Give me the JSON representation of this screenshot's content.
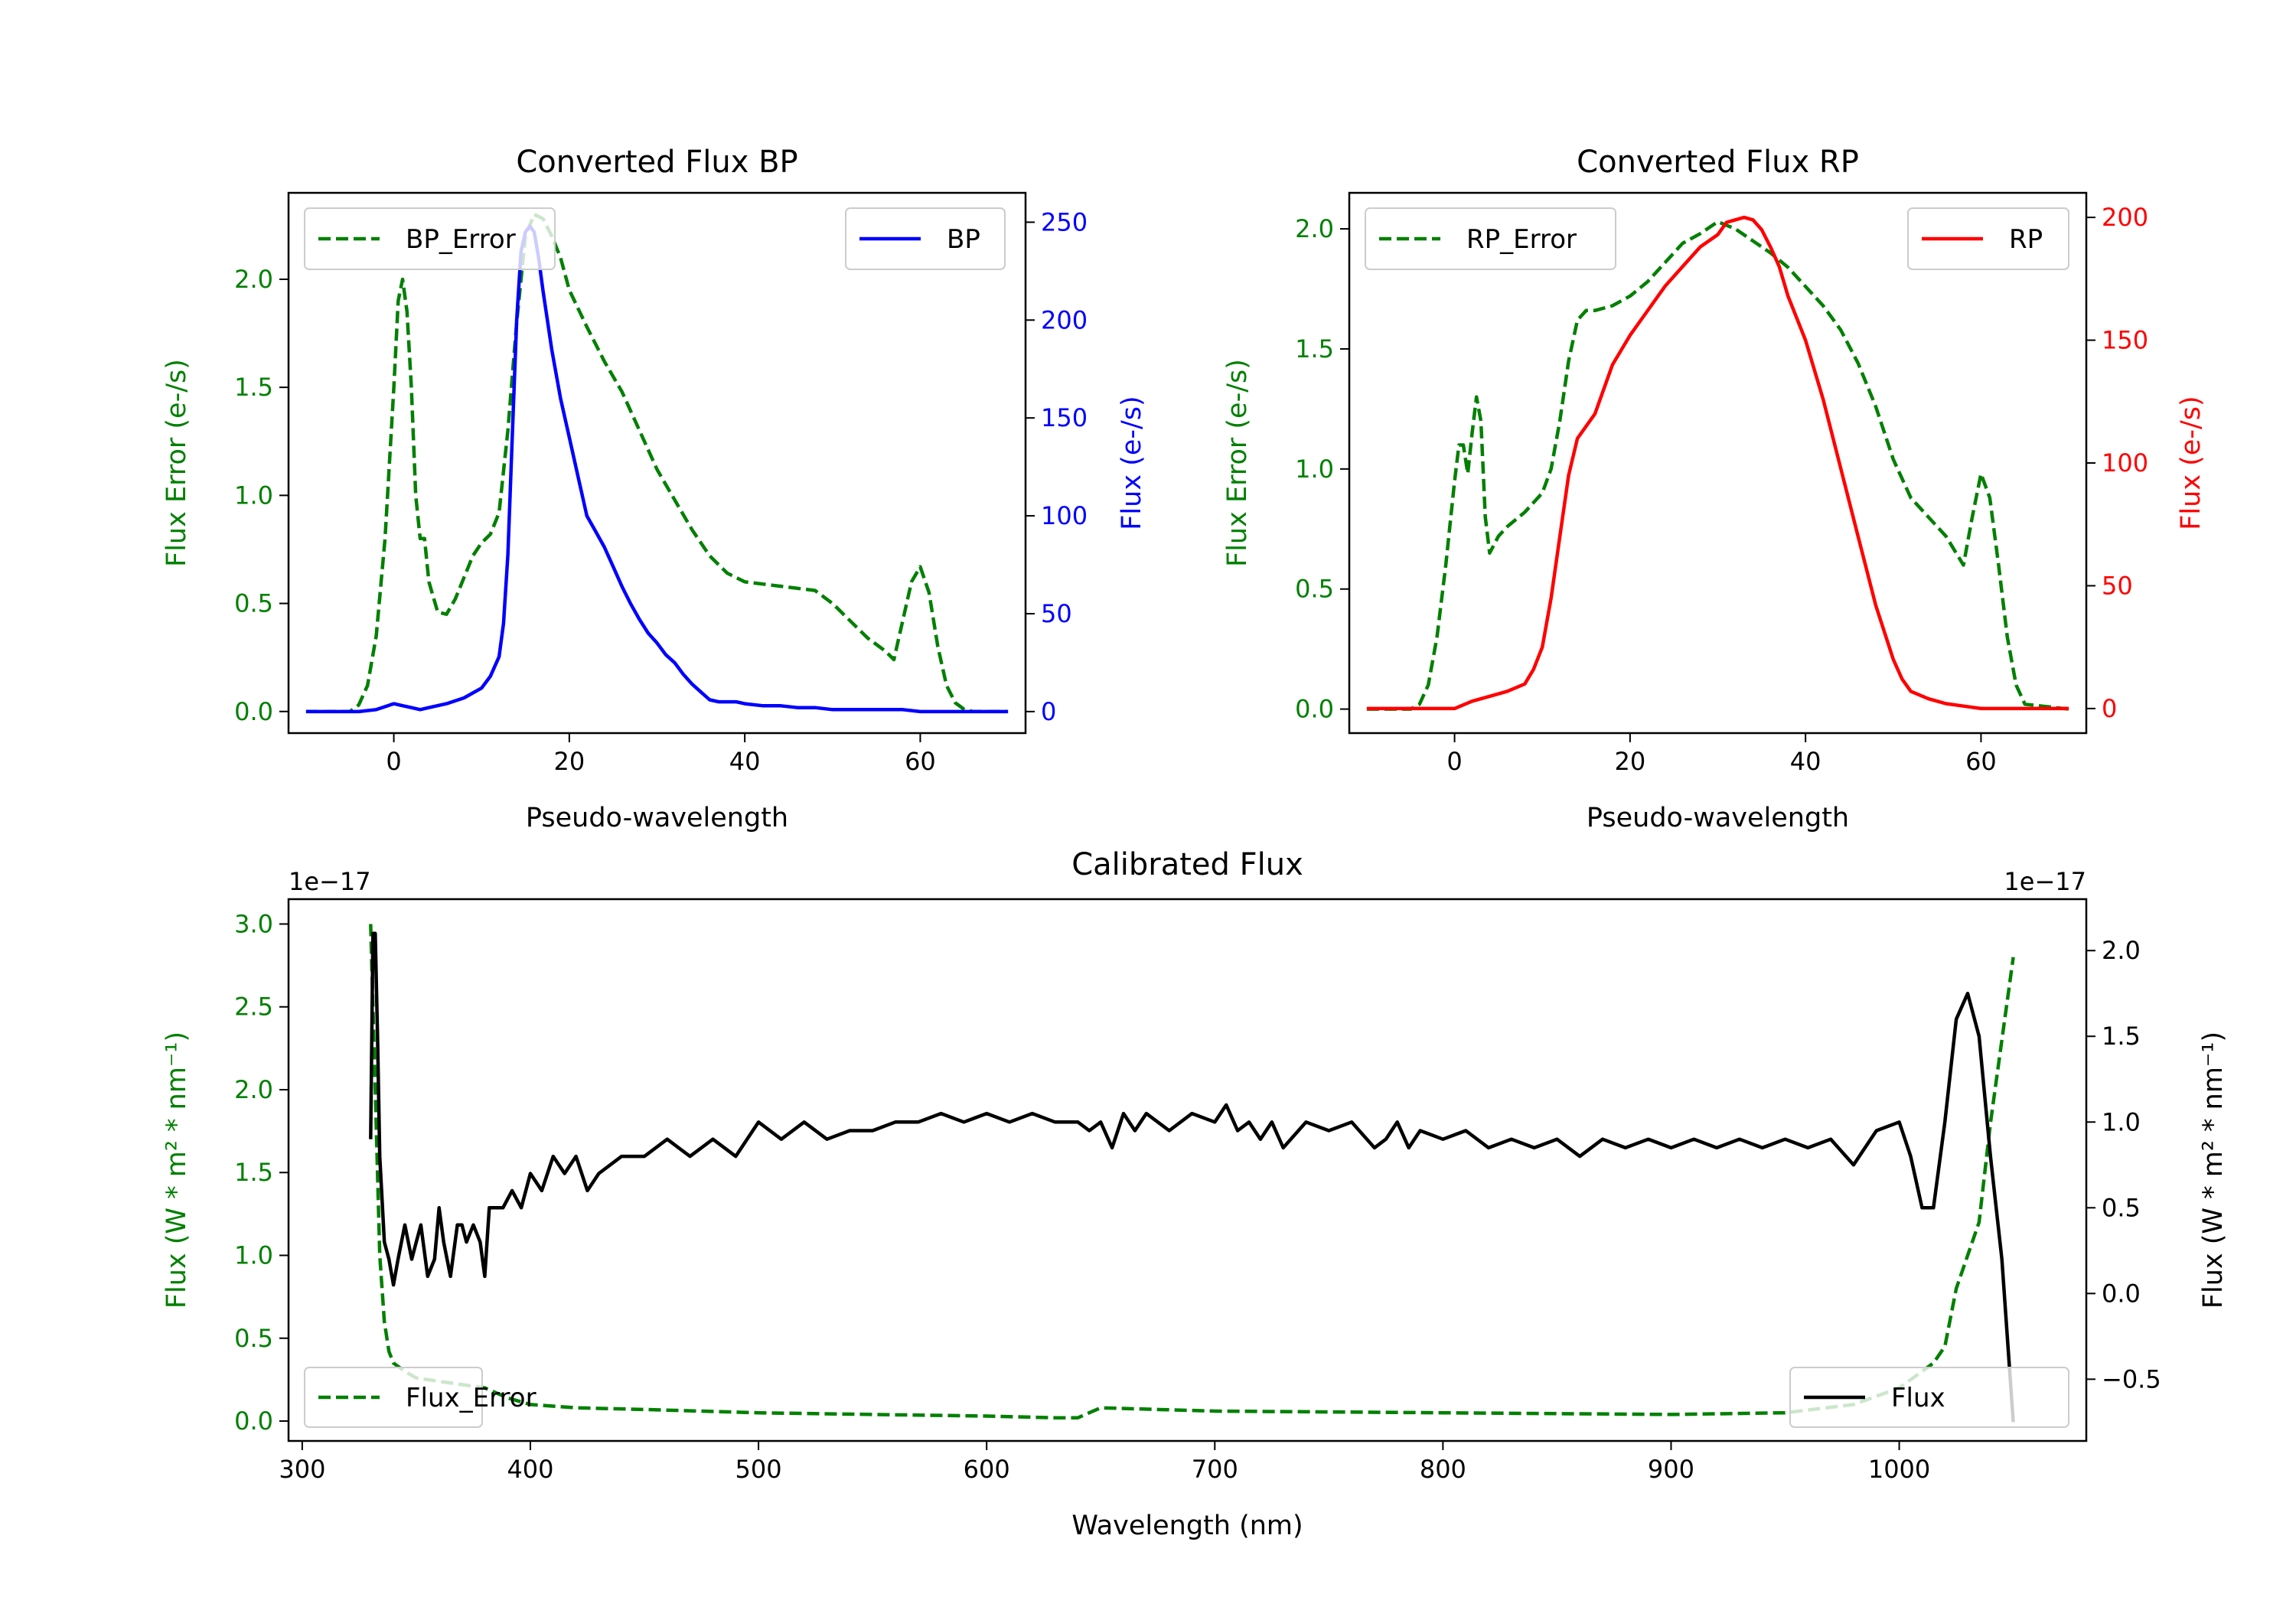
{
  "chart_data": [
    {
      "type": "line",
      "title": "Converted Flux BP",
      "xlabel": "Pseudo-wavelength",
      "ylabel_left": "Flux Error (e-/s)",
      "ylabel_right": "Flux (e-/s)",
      "xlim": [
        -12,
        72
      ],
      "ylim_left": [
        -0.1,
        2.4
      ],
      "ylim_right": [
        -11,
        265
      ],
      "xticks": [
        "0",
        "20",
        "40",
        "60"
      ],
      "yticks_left": [
        "0.0",
        "0.5",
        "1.0",
        "1.5",
        "2.0"
      ],
      "yticks_right": [
        "0",
        "50",
        "100",
        "150",
        "200",
        "250"
      ],
      "series": [
        {
          "name": "BP_Error",
          "axis": "left",
          "color": "#008000",
          "style": "dashed",
          "legend_loc": "upper left",
          "x": [
            -10,
            -5,
            -4,
            -3,
            -2,
            -1,
            0,
            0.5,
            1,
            1.5,
            2,
            2.5,
            3,
            3.5,
            4,
            5,
            6,
            7,
            8,
            9,
            10,
            11,
            12,
            13,
            14,
            15,
            16,
            17,
            18,
            19,
            20,
            22,
            24,
            26,
            28,
            30,
            32,
            34,
            36,
            38,
            40,
            44,
            48,
            50,
            52,
            54,
            56,
            57,
            58,
            59,
            60,
            61,
            62,
            63,
            64,
            65,
            66,
            70
          ],
          "values": [
            0,
            0,
            0.03,
            0.12,
            0.35,
            0.8,
            1.5,
            1.9,
            2.0,
            1.85,
            1.5,
            1.0,
            0.8,
            0.8,
            0.6,
            0.46,
            0.45,
            0.52,
            0.62,
            0.72,
            0.78,
            0.82,
            0.92,
            1.3,
            1.8,
            2.2,
            2.3,
            2.28,
            2.2,
            2.1,
            1.95,
            1.78,
            1.62,
            1.48,
            1.3,
            1.12,
            0.98,
            0.84,
            0.72,
            0.64,
            0.6,
            0.58,
            0.56,
            0.5,
            0.42,
            0.34,
            0.28,
            0.24,
            0.42,
            0.6,
            0.67,
            0.55,
            0.3,
            0.12,
            0.04,
            0.01,
            0,
            0
          ]
        },
        {
          "name": "BP",
          "axis": "right",
          "color": "#0000ff",
          "style": "solid",
          "legend_loc": "upper right",
          "x": [
            -10,
            -4,
            -2,
            0,
            1,
            2,
            3,
            4,
            6,
            8,
            10,
            11,
            12,
            12.5,
            13,
            13.5,
            14,
            14.5,
            15,
            15.5,
            16,
            16.5,
            17,
            18,
            19,
            20,
            21,
            22,
            23,
            24,
            25,
            26,
            27,
            28,
            29,
            30,
            31,
            32,
            33,
            34,
            35,
            36,
            37,
            38,
            39,
            40,
            42,
            44,
            46,
            48,
            50,
            52,
            54,
            56,
            58,
            60,
            62,
            64,
            66,
            70
          ],
          "values": [
            0,
            0,
            1,
            4,
            3,
            2,
            1,
            2,
            4,
            7,
            12,
            18,
            28,
            45,
            80,
            140,
            200,
            235,
            245,
            248,
            245,
            232,
            215,
            185,
            160,
            140,
            120,
            100,
            92,
            84,
            74,
            64,
            55,
            47,
            40,
            35,
            29,
            25,
            19,
            14,
            10,
            6,
            5,
            5,
            5,
            4,
            3,
            3,
            2,
            2,
            1,
            1,
            1,
            1,
            1,
            0,
            0,
            0,
            0,
            0
          ]
        }
      ]
    },
    {
      "type": "line",
      "title": "Converted Flux RP",
      "xlabel": "Pseudo-wavelength",
      "ylabel_left": "Flux Error (e-/s)",
      "ylabel_right": "Flux (e-/s)",
      "xlim": [
        -12,
        72
      ],
      "ylim_left": [
        -0.1,
        2.15
      ],
      "ylim_right": [
        -10,
        210
      ],
      "xticks": [
        "0",
        "20",
        "40",
        "60"
      ],
      "yticks_left": [
        "0.0",
        "0.5",
        "1.0",
        "1.5",
        "2.0"
      ],
      "yticks_right": [
        "0",
        "50",
        "100",
        "150",
        "200"
      ],
      "series": [
        {
          "name": "RP_Error",
          "axis": "left",
          "color": "#008000",
          "style": "dashed",
          "legend_loc": "upper left",
          "x": [
            -10,
            -5,
            -4,
            -3,
            -2,
            -1,
            0,
            0.5,
            1,
            1.5,
            2,
            2.5,
            3,
            3.5,
            4,
            5,
            6,
            8,
            10,
            11,
            12,
            13,
            14,
            15,
            16,
            18,
            20,
            22,
            24,
            26,
            28,
            30,
            32,
            34,
            36,
            38,
            40,
            42,
            44,
            46,
            48,
            50,
            52,
            54,
            56,
            57,
            58,
            59,
            60,
            61,
            62,
            63,
            64,
            65,
            70
          ],
          "values": [
            0,
            0,
            0.02,
            0.1,
            0.3,
            0.6,
            0.95,
            1.1,
            1.1,
            0.98,
            1.15,
            1.3,
            1.2,
            0.8,
            0.65,
            0.72,
            0.76,
            0.82,
            0.9,
            1.0,
            1.2,
            1.45,
            1.62,
            1.66,
            1.66,
            1.68,
            1.72,
            1.78,
            1.86,
            1.94,
            1.98,
            2.03,
            2.0,
            1.95,
            1.9,
            1.84,
            1.76,
            1.68,
            1.58,
            1.44,
            1.26,
            1.04,
            0.88,
            0.8,
            0.72,
            0.66,
            0.6,
            0.8,
            0.98,
            0.88,
            0.6,
            0.3,
            0.1,
            0.02,
            0
          ]
        },
        {
          "name": "RP",
          "axis": "right",
          "color": "#ff0000",
          "style": "solid",
          "legend_loc": "upper right",
          "x": [
            -10,
            -2,
            0,
            2,
            4,
            6,
            8,
            9,
            10,
            11,
            12,
            13,
            14,
            16,
            18,
            20,
            22,
            24,
            26,
            28,
            30,
            31,
            32,
            33,
            34,
            35,
            36,
            37,
            38,
            40,
            42,
            44,
            46,
            48,
            50,
            51,
            52,
            54,
            56,
            58,
            60,
            62,
            64,
            66,
            70
          ],
          "values": [
            0,
            0,
            0,
            3,
            5,
            7,
            10,
            16,
            25,
            45,
            70,
            95,
            110,
            120,
            140,
            152,
            162,
            172,
            180,
            188,
            193,
            198,
            199,
            200,
            199,
            195,
            188,
            180,
            168,
            150,
            126,
            98,
            70,
            42,
            20,
            12,
            7,
            4,
            2,
            1,
            0,
            0,
            0,
            0,
            0
          ]
        }
      ]
    },
    {
      "type": "line",
      "title": "Calibrated Flux",
      "xlabel": "Wavelength (nm)",
      "ylabel_left": "Flux (W * m² * nm⁻¹)",
      "ylabel_right": "Flux (W * m² * nm⁻¹)",
      "offset_left": "1e−17",
      "offset_right": "1e−17",
      "xlim": [
        294,
        1082
      ],
      "ylim_left": [
        -0.12,
        3.15
      ],
      "ylim_right": [
        -0.86,
        2.3
      ],
      "xticks": [
        "300",
        "400",
        "500",
        "600",
        "700",
        "800",
        "900",
        "1000"
      ],
      "yticks_left": [
        "0.0",
        "0.5",
        "1.0",
        "1.5",
        "2.0",
        "2.5",
        "3.0"
      ],
      "yticks_right": [
        "−0.5",
        "0.0",
        "0.5",
        "1.0",
        "1.5",
        "2.0"
      ],
      "series": [
        {
          "name": "Flux_Error",
          "axis": "left",
          "color": "#008000",
          "style": "dashed",
          "legend_loc": "lower right",
          "x": [
            330,
            332,
            334,
            336,
            338,
            340,
            345,
            350,
            360,
            370,
            380,
            390,
            400,
            420,
            450,
            500,
            550,
            600,
            630,
            640,
            650,
            700,
            800,
            900,
            950,
            980,
            1000,
            1010,
            1015,
            1020,
            1025,
            1030,
            1035,
            1040,
            1045,
            1050
          ],
          "values": [
            3.0,
            2.0,
            1.0,
            0.6,
            0.42,
            0.35,
            0.3,
            0.26,
            0.24,
            0.22,
            0.2,
            0.14,
            0.1,
            0.08,
            0.07,
            0.05,
            0.04,
            0.03,
            0.02,
            0.02,
            0.08,
            0.06,
            0.05,
            0.04,
            0.05,
            0.1,
            0.2,
            0.3,
            0.35,
            0.45,
            0.8,
            1.0,
            1.2,
            1.8,
            2.3,
            2.8
          ]
        },
        {
          "name": "Flux",
          "axis": "right",
          "color": "#000000",
          "style": "solid",
          "legend_loc": "lower left",
          "x": [
            330,
            331,
            332,
            333,
            334,
            336,
            338,
            340,
            342,
            345,
            348,
            350,
            352,
            355,
            358,
            360,
            362,
            365,
            368,
            370,
            372,
            375,
            378,
            380,
            382,
            385,
            388,
            392,
            396,
            400,
            405,
            410,
            415,
            420,
            425,
            430,
            440,
            450,
            460,
            470,
            480,
            490,
            500,
            510,
            520,
            530,
            540,
            550,
            560,
            570,
            580,
            590,
            600,
            610,
            620,
            630,
            640,
            645,
            650,
            655,
            660,
            665,
            670,
            680,
            690,
            700,
            705,
            710,
            715,
            720,
            725,
            730,
            740,
            750,
            760,
            770,
            775,
            780,
            785,
            790,
            800,
            810,
            820,
            830,
            840,
            850,
            860,
            870,
            880,
            890,
            900,
            910,
            920,
            930,
            940,
            950,
            960,
            970,
            980,
            990,
            1000,
            1005,
            1010,
            1015,
            1020,
            1025,
            1030,
            1035,
            1040,
            1045,
            1050
          ],
          "values": [
            0.9,
            2.1,
            2.1,
            1.5,
            0.8,
            0.3,
            0.2,
            0.05,
            0.2,
            0.4,
            0.2,
            0.3,
            0.4,
            0.1,
            0.2,
            0.5,
            0.3,
            0.1,
            0.4,
            0.4,
            0.3,
            0.4,
            0.3,
            0.1,
            0.5,
            0.5,
            0.5,
            0.6,
            0.5,
            0.7,
            0.6,
            0.8,
            0.7,
            0.8,
            0.6,
            0.7,
            0.8,
            0.8,
            0.9,
            0.8,
            0.9,
            0.8,
            1.0,
            0.9,
            1.0,
            0.9,
            0.95,
            0.95,
            1.0,
            1.0,
            1.05,
            1.0,
            1.05,
            1.0,
            1.05,
            1.0,
            1.0,
            0.95,
            1.0,
            0.85,
            1.05,
            0.95,
            1.05,
            0.95,
            1.05,
            1.0,
            1.1,
            0.95,
            1.0,
            0.9,
            1.0,
            0.85,
            1.0,
            0.95,
            1.0,
            0.85,
            0.9,
            1.0,
            0.85,
            0.95,
            0.9,
            0.95,
            0.85,
            0.9,
            0.85,
            0.9,
            0.8,
            0.9,
            0.85,
            0.9,
            0.85,
            0.9,
            0.85,
            0.9,
            0.85,
            0.9,
            0.85,
            0.9,
            0.75,
            0.95,
            1.0,
            0.8,
            0.5,
            0.5,
            1.0,
            1.6,
            1.75,
            1.5,
            0.8,
            0.2,
            -0.75
          ]
        }
      ]
    }
  ]
}
